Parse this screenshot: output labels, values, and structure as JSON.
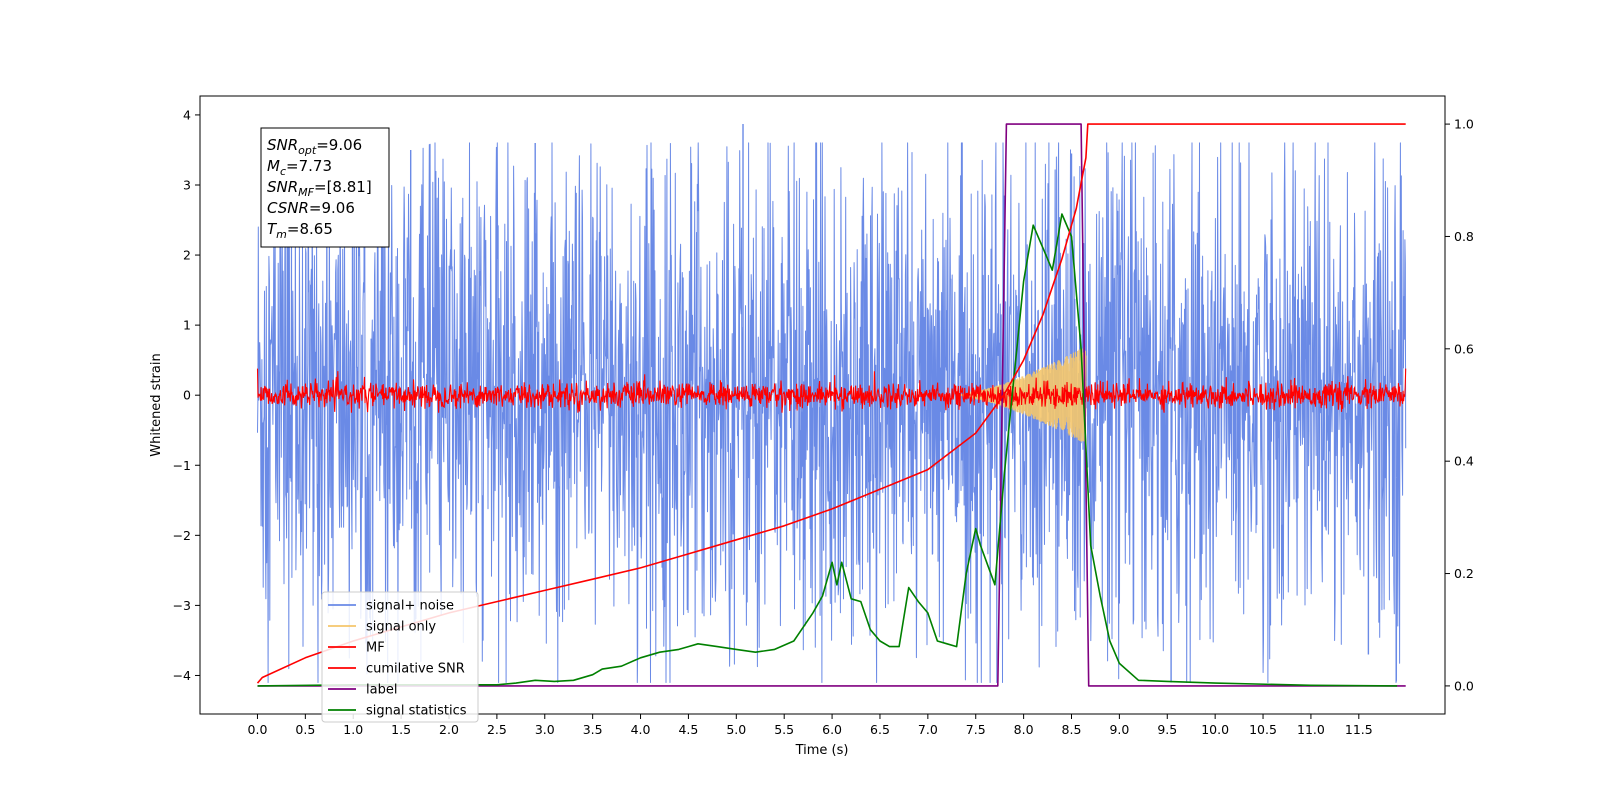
{
  "chart_data": {
    "type": "line",
    "xlabel": "Time (s)",
    "ylabel": "Whitened strain",
    "xlim": [
      -0.6,
      12.4
    ],
    "ylim": [
      -4.55,
      4.27
    ],
    "ylim_right": [
      -0.05,
      1.05
    ],
    "grid": false,
    "legend_position": "lower-left",
    "x_ticks": [
      "0.0",
      "0.5",
      "1.0",
      "1.5",
      "2.0",
      "2.5",
      "3.0",
      "3.5",
      "4.0",
      "4.5",
      "5.0",
      "5.5",
      "6.0",
      "6.5",
      "7.0",
      "7.5",
      "8.0",
      "8.5",
      "9.0",
      "9.5",
      "10.0",
      "10.5",
      "11.0",
      "11.5"
    ],
    "y_ticks": [
      "4",
      "3",
      "2",
      "1",
      "0",
      "−1",
      "−2",
      "−3",
      "−4"
    ],
    "y_ticks_right": [
      "1.0",
      "0.8",
      "0.6",
      "0.4",
      "0.2",
      "0.0"
    ],
    "annotation": {
      "snr_opt": {
        "var": "SNR",
        "sub": "opt",
        "value": "=9.06"
      },
      "mc": {
        "var": "M",
        "sub": "c",
        "value": "=7.73"
      },
      "snr_mf": {
        "var": "SNR",
        "sub": "MF",
        "value": "=[8.81]"
      },
      "csnr": {
        "var": "CSNR",
        "value": "=9.06"
      },
      "tm": {
        "var": "T",
        "sub": "m",
        "value": "=8.65"
      }
    },
    "series": [
      {
        "name": "signal+ noise",
        "axis": "left",
        "color": "#6a8ae6",
        "style": "noise band",
        "x_range": [
          0.0,
          11.99
        ],
        "typical_amplitude": 2.3,
        "max_peak": 3.87,
        "min_trough": -4.1
      },
      {
        "name": "signal only",
        "axis": "left",
        "color": "#f5c66b",
        "style": "chirp",
        "x_range": [
          7.3,
          8.65
        ],
        "peak_amplitude": 0.7
      },
      {
        "name": "MF",
        "axis": "left",
        "color": "#ff0000",
        "style": "noise band",
        "x_range": [
          0.0,
          11.99
        ],
        "typical_amplitude": 0.15
      },
      {
        "name": "cumilative SNR",
        "axis": "right",
        "color": "#ff0000",
        "x": [
          0.0,
          0.05,
          0.5,
          1.0,
          1.5,
          2.0,
          2.5,
          3.0,
          3.5,
          4.0,
          4.5,
          5.0,
          5.5,
          6.0,
          6.5,
          7.0,
          7.5,
          7.8,
          8.0,
          8.2,
          8.4,
          8.55,
          8.65,
          8.67,
          9.5,
          10.5,
          11.99
        ],
        "values": [
          0.005,
          0.015,
          0.05,
          0.08,
          0.105,
          0.13,
          0.15,
          0.17,
          0.19,
          0.21,
          0.235,
          0.26,
          0.285,
          0.315,
          0.35,
          0.385,
          0.45,
          0.52,
          0.58,
          0.66,
          0.76,
          0.85,
          0.94,
          1.0,
          1.0,
          1.0,
          1.0
        ]
      },
      {
        "name": "label",
        "axis": "right",
        "color": "#800080",
        "x": [
          0.0,
          7.73,
          7.82,
          8.6,
          8.68,
          11.99
        ],
        "values": [
          0.0,
          0.0,
          1.0,
          1.0,
          0.0,
          0.0
        ]
      },
      {
        "name": "signal statistics",
        "axis": "right",
        "color": "#008000",
        "x": [
          0.0,
          1.0,
          2.0,
          2.5,
          2.7,
          2.9,
          3.1,
          3.3,
          3.5,
          3.6,
          3.8,
          4.0,
          4.2,
          4.4,
          4.5,
          4.6,
          4.8,
          5.0,
          5.2,
          5.4,
          5.6,
          5.8,
          5.9,
          6.0,
          6.05,
          6.1,
          6.2,
          6.3,
          6.4,
          6.5,
          6.6,
          6.7,
          6.8,
          6.9,
          7.0,
          7.1,
          7.2,
          7.3,
          7.4,
          7.5,
          7.55,
          7.7,
          7.8,
          7.9,
          8.0,
          8.1,
          8.2,
          8.3,
          8.4,
          8.5,
          8.6,
          8.7,
          8.8,
          8.9,
          9.0,
          9.2,
          9.5,
          10.0,
          11.0,
          11.9
        ],
        "values": [
          0.0,
          0.002,
          0.002,
          0.002,
          0.005,
          0.01,
          0.008,
          0.01,
          0.02,
          0.03,
          0.035,
          0.05,
          0.06,
          0.065,
          0.07,
          0.075,
          0.07,
          0.065,
          0.06,
          0.065,
          0.08,
          0.13,
          0.16,
          0.22,
          0.18,
          0.22,
          0.155,
          0.15,
          0.1,
          0.08,
          0.07,
          0.07,
          0.175,
          0.15,
          0.13,
          0.08,
          0.075,
          0.07,
          0.2,
          0.28,
          0.25,
          0.18,
          0.38,
          0.55,
          0.72,
          0.82,
          0.78,
          0.74,
          0.84,
          0.8,
          0.6,
          0.25,
          0.16,
          0.08,
          0.04,
          0.01,
          0.008,
          0.005,
          0.001,
          0.0
        ]
      }
    ]
  }
}
